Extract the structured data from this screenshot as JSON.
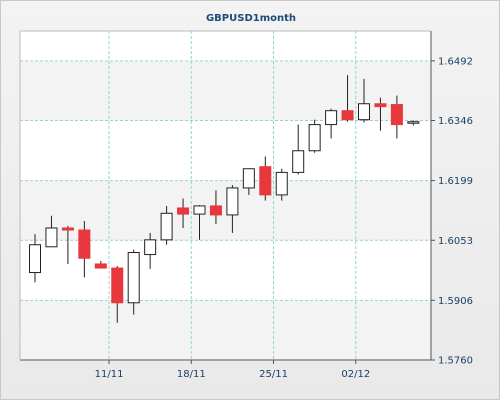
{
  "chart_data": {
    "type": "candlestick",
    "title": "GBPUSD1month",
    "xlabel": "",
    "ylabel": "",
    "ylim": [
      1.576,
      1.6565
    ],
    "y_ticks": [
      "1.6492",
      "1.6346",
      "1.6199",
      "1.6053",
      "1.5906",
      "1.5760"
    ],
    "x_ticks": [
      {
        "label": "11/11",
        "index": 4.5
      },
      {
        "label": "18/11",
        "index": 9.5
      },
      {
        "label": "25/11",
        "index": 14.5
      },
      {
        "label": "02/12",
        "index": 19.5
      }
    ],
    "grid": true,
    "colors": {
      "up_fill": "#ffffff",
      "down_fill": "#e8373d",
      "outline": "#222222",
      "grid": "#9ad2d2",
      "band": "#f3f3f3"
    },
    "candles": [
      {
        "open": 1.5974,
        "high": 1.6068,
        "low": 1.595,
        "close": 1.6042
      },
      {
        "open": 1.6037,
        "high": 1.6113,
        "low": 1.6037,
        "close": 1.6083
      },
      {
        "open": 1.6083,
        "high": 1.6088,
        "low": 1.5995,
        "close": 1.6078
      },
      {
        "open": 1.6078,
        "high": 1.61,
        "low": 1.5962,
        "close": 1.6009
      },
      {
        "open": 1.5995,
        "high": 1.6002,
        "low": 1.5985,
        "close": 1.5985
      },
      {
        "open": 1.5985,
        "high": 1.599,
        "low": 1.5851,
        "close": 1.59
      },
      {
        "open": 1.59,
        "high": 1.603,
        "low": 1.5871,
        "close": 1.6023
      },
      {
        "open": 1.6018,
        "high": 1.6071,
        "low": 1.5983,
        "close": 1.6054
      },
      {
        "open": 1.6054,
        "high": 1.6137,
        "low": 1.6042,
        "close": 1.6119
      },
      {
        "open": 1.6132,
        "high": 1.6155,
        "low": 1.6083,
        "close": 1.6117
      },
      {
        "open": 1.6117,
        "high": 1.6139,
        "low": 1.6054,
        "close": 1.6137
      },
      {
        "open": 1.6137,
        "high": 1.6175,
        "low": 1.6093,
        "close": 1.6115
      },
      {
        "open": 1.6115,
        "high": 1.6188,
        "low": 1.6071,
        "close": 1.6181
      },
      {
        "open": 1.6181,
        "high": 1.6228,
        "low": 1.6164,
        "close": 1.6228
      },
      {
        "open": 1.6233,
        "high": 1.6258,
        "low": 1.615,
        "close": 1.6164
      },
      {
        "open": 1.6164,
        "high": 1.6228,
        "low": 1.615,
        "close": 1.6219
      },
      {
        "open": 1.6219,
        "high": 1.6336,
        "low": 1.6214,
        "close": 1.6272
      },
      {
        "open": 1.6272,
        "high": 1.6348,
        "low": 1.6267,
        "close": 1.6336
      },
      {
        "open": 1.6336,
        "high": 1.6375,
        "low": 1.6302,
        "close": 1.637
      },
      {
        "open": 1.637,
        "high": 1.6457,
        "low": 1.6343,
        "close": 1.6348
      },
      {
        "open": 1.6348,
        "high": 1.6448,
        "low": 1.6341,
        "close": 1.6387
      },
      {
        "open": 1.6387,
        "high": 1.6402,
        "low": 1.6321,
        "close": 1.638
      },
      {
        "open": 1.6385,
        "high": 1.6407,
        "low": 1.6302,
        "close": 1.6336
      },
      {
        "open": 1.6341,
        "high": 1.6346,
        "low": 1.6334,
        "close": 1.6343
      }
    ]
  }
}
